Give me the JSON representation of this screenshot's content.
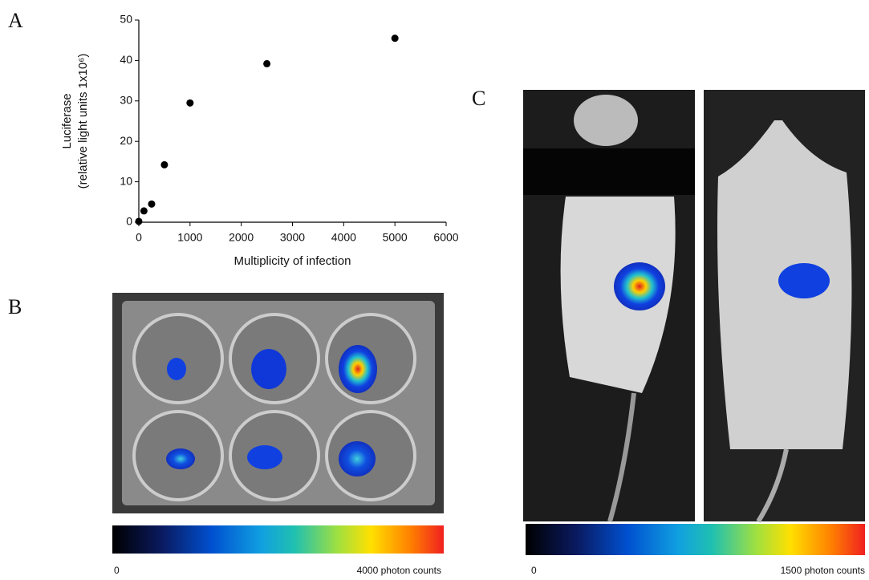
{
  "panels": {
    "a": "A",
    "b": "B",
    "c": "C"
  },
  "chart_data": {
    "type": "scatter",
    "y_label": "Luciferase",
    "y_label_2": "(relative light units 1x10⁶)",
    "x_label": "Multiplicity of infection",
    "x": [
      0,
      100,
      250,
      500,
      1000,
      2500,
      5000
    ],
    "values": [
      0.2,
      2.8,
      4.5,
      14.2,
      29.5,
      39.2,
      45.5
    ],
    "color": "#000000",
    "xlim": [
      0,
      6000
    ],
    "xticks": [
      0,
      1000,
      2000,
      3000,
      4000,
      5000,
      6000
    ],
    "ylim": [
      0,
      50
    ],
    "yticks": [
      0,
      10,
      20,
      30,
      40,
      50
    ],
    "grid": false
  },
  "colorbars": [
    {
      "min_label": "0",
      "max_label": "4000 photon counts"
    },
    {
      "min_label": "0",
      "max_label": "1500 photon counts"
    }
  ]
}
